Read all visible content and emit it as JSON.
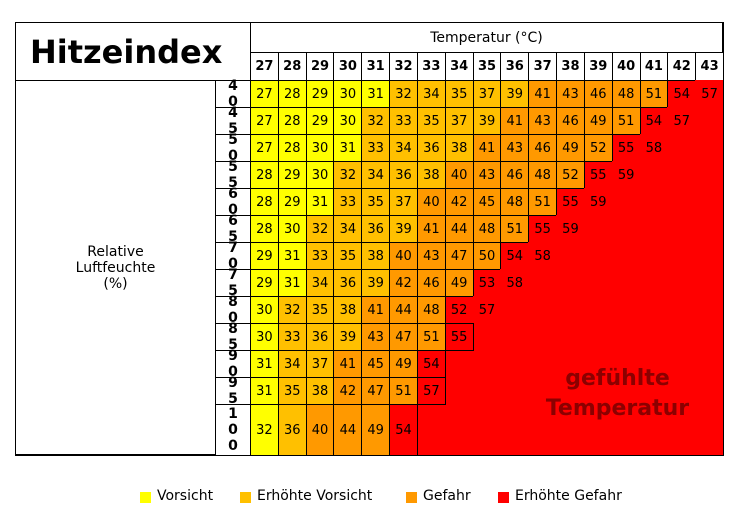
{
  "title": "Hitzeindex",
  "header": "Temperatur (°C)",
  "temperatures": [
    27,
    28,
    29,
    30,
    31,
    32,
    33,
    34,
    35,
    36,
    37,
    38,
    39,
    40,
    41,
    42,
    43
  ],
  "row_label": "Relative Luftfeuchte (%)",
  "humidities": [
    40,
    45,
    50,
    55,
    60,
    65,
    70,
    75,
    80,
    85,
    90,
    95,
    100
  ],
  "rows": [
    [
      27,
      28,
      29,
      30,
      31,
      32,
      34,
      35,
      37,
      39,
      41,
      43,
      46,
      48,
      51,
      54,
      57
    ],
    [
      27,
      28,
      29,
      30,
      32,
      33,
      35,
      37,
      39,
      41,
      43,
      46,
      49,
      51,
      54,
      57
    ],
    [
      27,
      28,
      30,
      31,
      33,
      34,
      36,
      38,
      41,
      43,
      46,
      49,
      52,
      55,
      58
    ],
    [
      28,
      29,
      30,
      32,
      34,
      36,
      38,
      40,
      43,
      46,
      48,
      52,
      55,
      59
    ],
    [
      28,
      29,
      31,
      33,
      35,
      37,
      40,
      42,
      45,
      48,
      51,
      55,
      59
    ],
    [
      28,
      30,
      32,
      34,
      36,
      39,
      41,
      44,
      48,
      51,
      55,
      59
    ],
    [
      29,
      31,
      33,
      35,
      38,
      40,
      43,
      47,
      50,
      54,
      58
    ],
    [
      29,
      31,
      34,
      36,
      39,
      42,
      46,
      49,
      53,
      58
    ],
    [
      30,
      32,
      35,
      38,
      41,
      44,
      48,
      52,
      57
    ],
    [
      30,
      33,
      36,
      39,
      43,
      47,
      51,
      55
    ],
    [
      31,
      34,
      37,
      41,
      45,
      49,
      54
    ],
    [
      31,
      35,
      38,
      42,
      47,
      51,
      57
    ],
    [
      32,
      36,
      40,
      44,
      49,
      54
    ]
  ],
  "levels": [
    [
      0,
      0,
      0,
      0,
      0,
      1,
      1,
      1,
      1,
      1,
      2,
      2,
      2,
      2,
      2,
      3,
      3
    ],
    [
      0,
      0,
      0,
      0,
      1,
      1,
      1,
      1,
      1,
      2,
      2,
      2,
      2,
      2,
      3,
      3
    ],
    [
      0,
      0,
      0,
      0,
      1,
      1,
      1,
      1,
      2,
      2,
      2,
      2,
      2,
      3,
      3
    ],
    [
      0,
      0,
      0,
      1,
      1,
      1,
      1,
      2,
      2,
      2,
      2,
      2,
      3,
      3
    ],
    [
      0,
      0,
      0,
      1,
      1,
      1,
      2,
      2,
      2,
      2,
      2,
      3,
      3
    ],
    [
      0,
      0,
      1,
      1,
      1,
      1,
      2,
      2,
      2,
      2,
      3,
      3
    ],
    [
      0,
      0,
      1,
      1,
      1,
      2,
      2,
      2,
      2,
      3,
      3
    ],
    [
      0,
      0,
      1,
      1,
      1,
      2,
      2,
      2,
      3,
      3
    ],
    [
      0,
      1,
      1,
      1,
      2,
      2,
      2,
      3,
      3
    ],
    [
      0,
      1,
      1,
      1,
      2,
      2,
      2,
      3
    ],
    [
      0,
      1,
      1,
      2,
      2,
      2,
      3
    ],
    [
      0,
      1,
      1,
      2,
      2,
      2,
      3
    ],
    [
      0,
      1,
      2,
      2,
      2,
      3
    ]
  ],
  "overlay": "gefühlte Temperatur",
  "legend": [
    {
      "label": "Vorsicht",
      "color": "#ffff00"
    },
    {
      "label": "Erhöhte Vorsicht",
      "color": "#ffc000"
    },
    {
      "label": "Gefahr",
      "color": "#ff9900"
    },
    {
      "label": "Erhöhte Gefahr",
      "color": "#ff0000"
    }
  ]
}
